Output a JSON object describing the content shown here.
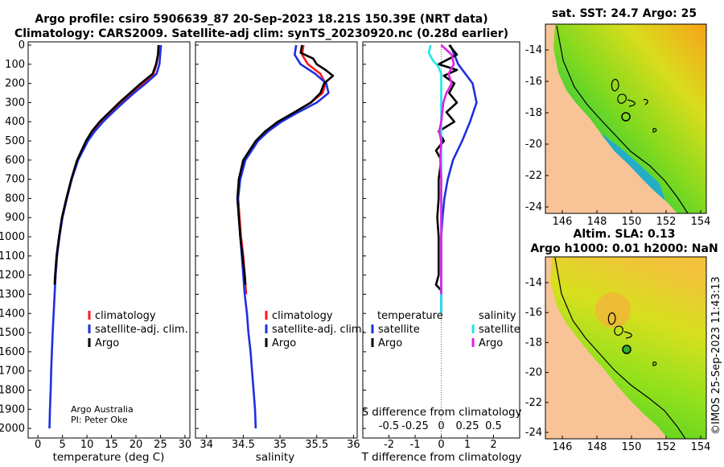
{
  "title": {
    "line1": "Argo profile: csiro 5906639_87 20-Sep-2023 18.21S 150.39E (NRT data)",
    "line2": "Climatology: CARS2009. Satellite-adj clim: synTS_20230920.nc (0.28d earlier)"
  },
  "colors": {
    "argo": "#000000",
    "climatology": "#ff1a1a",
    "satellite": "#1f2fe0",
    "sat_salinity": "#22e6e6",
    "argo_salinity": "#e020e0"
  },
  "depth_axis": {
    "ticks": [
      0,
      100,
      200,
      300,
      400,
      500,
      600,
      700,
      800,
      900,
      1000,
      1100,
      1200,
      1300,
      1400,
      1500,
      1600,
      1700,
      1800,
      1900,
      2000
    ],
    "range": [
      0,
      2050
    ]
  },
  "chart_data": [
    {
      "type": "line",
      "id": "temperature",
      "xlabel": "temperature (deg C)",
      "ylabel": "",
      "xlim": [
        -2,
        31
      ],
      "ylim": [
        2050,
        0
      ],
      "xticks": [
        0,
        5,
        10,
        15,
        20,
        25,
        30
      ],
      "legend": [
        "climatology",
        "satellite-adj. clim.",
        "Argo"
      ],
      "series": [
        {
          "name": "climatology",
          "depth": [
            0,
            100,
            150,
            200,
            250,
            300,
            350,
            400,
            450,
            500,
            600,
            700,
            800,
            900,
            1000,
            1100,
            1200,
            1250
          ],
          "values": [
            24.8,
            24.2,
            23.6,
            21.5,
            19.2,
            17.0,
            15.0,
            13.0,
            11.3,
            10.0,
            8.1,
            6.9,
            5.9,
            5.0,
            4.3,
            3.9,
            3.6,
            3.5
          ]
        },
        {
          "name": "satellite-adj. clim.",
          "depth": [
            0,
            100,
            150,
            200,
            250,
            300,
            350,
            400,
            450,
            500,
            600,
            700,
            800,
            900,
            1000,
            1100,
            1200,
            1300,
            1400,
            1500,
            1600,
            1700,
            1800,
            1900,
            2000
          ],
          "values": [
            25.1,
            24.8,
            24.2,
            22.0,
            19.6,
            17.4,
            15.3,
            13.3,
            11.6,
            10.2,
            8.2,
            6.9,
            5.9,
            5.0,
            4.4,
            3.9,
            3.6,
            3.4,
            3.2,
            3.0,
            2.85,
            2.7,
            2.6,
            2.45,
            2.35
          ]
        },
        {
          "name": "Argo",
          "depth": [
            0,
            50,
            100,
            150,
            200,
            250,
            300,
            350,
            400,
            450,
            500,
            600,
            700,
            800,
            900,
            1000,
            1100,
            1200,
            1250
          ],
          "values": [
            24.6,
            24.5,
            24.1,
            23.4,
            21.0,
            18.8,
            16.6,
            14.6,
            12.6,
            11.0,
            9.8,
            8.0,
            6.8,
            5.8,
            4.9,
            4.3,
            3.8,
            3.5,
            3.4
          ]
        }
      ],
      "annotation": {
        "line1": "Argo Australia",
        "line2": "PI: Peter Oke"
      }
    },
    {
      "type": "line",
      "id": "salinity",
      "xlabel": "salinity",
      "ylabel": "",
      "xlim": [
        33.85,
        36.05
      ],
      "ylim": [
        2050,
        0
      ],
      "xticks": [
        34,
        34.5,
        35,
        35.5,
        36
      ],
      "legend": [
        "climatology",
        "satellite-adj. clim.",
        "Argo"
      ],
      "series": [
        {
          "name": "climatology",
          "depth": [
            0,
            50,
            100,
            150,
            200,
            250,
            300,
            350,
            400,
            450,
            500,
            600,
            700,
            800,
            900,
            1000,
            1100,
            1200,
            1300
          ],
          "values": [
            35.32,
            35.3,
            35.38,
            35.55,
            35.62,
            35.58,
            35.42,
            35.2,
            34.98,
            34.8,
            34.68,
            34.52,
            34.45,
            34.43,
            34.45,
            34.47,
            34.5,
            34.52,
            34.54
          ]
        },
        {
          "name": "satellite-adj. clim.",
          "depth": [
            0,
            50,
            100,
            150,
            200,
            250,
            300,
            350,
            400,
            450,
            500,
            600,
            700,
            800,
            900,
            1000,
            1100,
            1200,
            1300,
            1400,
            1500,
            1600,
            1700,
            1800,
            1900,
            2000
          ],
          "values": [
            35.22,
            35.2,
            35.28,
            35.48,
            35.63,
            35.66,
            35.5,
            35.25,
            35.02,
            34.84,
            34.7,
            34.53,
            34.46,
            34.43,
            34.44,
            34.46,
            34.48,
            34.5,
            34.52,
            34.55,
            34.57,
            34.6,
            34.62,
            34.64,
            34.66,
            34.67
          ]
        },
        {
          "name": "Argo",
          "depth": [
            0,
            40,
            70,
            100,
            130,
            160,
            200,
            250,
            300,
            350,
            400,
            450,
            500,
            600,
            700,
            800,
            900,
            1000,
            1100,
            1200,
            1250
          ],
          "values": [
            35.3,
            35.28,
            35.45,
            35.5,
            35.62,
            35.72,
            35.6,
            35.55,
            35.42,
            35.2,
            34.97,
            34.8,
            34.67,
            34.5,
            34.44,
            34.42,
            34.44,
            34.46,
            34.49,
            34.52,
            34.53
          ]
        }
      ]
    },
    {
      "type": "line",
      "id": "difference",
      "xlabel": "T difference from climatology",
      "xlabel_top": "S difference from climatology",
      "xlim": [
        -3,
        3
      ],
      "ylim": [
        2050,
        0
      ],
      "xticks": [
        -2,
        -1,
        0,
        1,
        2
      ],
      "xticks_top": [
        "-0.5",
        "-0.25",
        "0",
        "0.25",
        "0.5"
      ],
      "legend_t_title": "temperature",
      "legend_s_title": "salinity",
      "legend_t": [
        "satellite",
        "Argo"
      ],
      "legend_s": [
        "satellite",
        "Argo"
      ],
      "series": [
        {
          "name": "T satellite",
          "depth": [
            0,
            100,
            200,
            300,
            400,
            500,
            600,
            700,
            800,
            900,
            1000,
            1100,
            1200,
            1300,
            1400
          ],
          "values": [
            0.35,
            0.65,
            1.2,
            1.35,
            1.1,
            0.8,
            0.45,
            0.25,
            0.12,
            0.05,
            0.0,
            0.0,
            0.0,
            0.0,
            0.0
          ]
        },
        {
          "name": "T Argo",
          "depth": [
            0,
            50,
            100,
            130,
            160,
            200,
            250,
            300,
            350,
            400,
            450,
            500,
            550,
            600,
            700,
            800,
            900,
            1000,
            1100,
            1200,
            1250,
            1280
          ],
          "values": [
            0.3,
            0.6,
            -0.1,
            0.6,
            0.1,
            0.5,
            0.3,
            0.6,
            0.2,
            0.5,
            -0.1,
            0.1,
            -0.2,
            0.0,
            -0.1,
            -0.1,
            -0.15,
            -0.1,
            -0.1,
            -0.1,
            -0.2,
            0.0
          ]
        },
        {
          "name": "S satellite",
          "depth": [
            0,
            40,
            80,
            110,
            150,
            200,
            250,
            300,
            400,
            500,
            600,
            700,
            800,
            900,
            1000,
            1100,
            1200,
            1300,
            1400
          ],
          "values": [
            -0.1,
            -0.12,
            -0.08,
            -0.03,
            0.0,
            0.0,
            0.0,
            0.0,
            0.0,
            0.0,
            0.0,
            0.0,
            0.0,
            0.0,
            0.0,
            0.0,
            0.0,
            0.0,
            0.0
          ]
        },
        {
          "name": "S Argo",
          "depth": [
            0,
            50,
            100,
            150,
            200,
            250,
            300,
            400,
            450,
            500,
            600,
            700,
            800,
            900,
            1000,
            1100,
            1200,
            1300
          ],
          "values": [
            0.0,
            0.1,
            0.12,
            0.07,
            0.1,
            0.05,
            0.02,
            0.0,
            -0.02,
            0.0,
            -0.01,
            0.0,
            0.0,
            0.0,
            0.0,
            0.0,
            0.0,
            0.0
          ]
        }
      ]
    }
  ],
  "maps": {
    "sst": {
      "title": "sat. SST: 24.7 Argo: 25",
      "lat_ticks": [
        "-14",
        "-16",
        "-18",
        "-20",
        "-22",
        "-24"
      ],
      "lon_ticks": [
        "146",
        "148",
        "150",
        "152",
        "154"
      ]
    },
    "sla": {
      "title1": "Altim. SLA: 0.13",
      "title2": "Argo h1000: 0.01 h2000: NaN",
      "lat_ticks": [
        "-14",
        "-16",
        "-18",
        "-20",
        "-22",
        "-24"
      ],
      "lon_ticks": [
        "146",
        "148",
        "150",
        "152",
        "154"
      ]
    }
  },
  "credit": "©IMOS 25-Sep-2023 11:43:13"
}
